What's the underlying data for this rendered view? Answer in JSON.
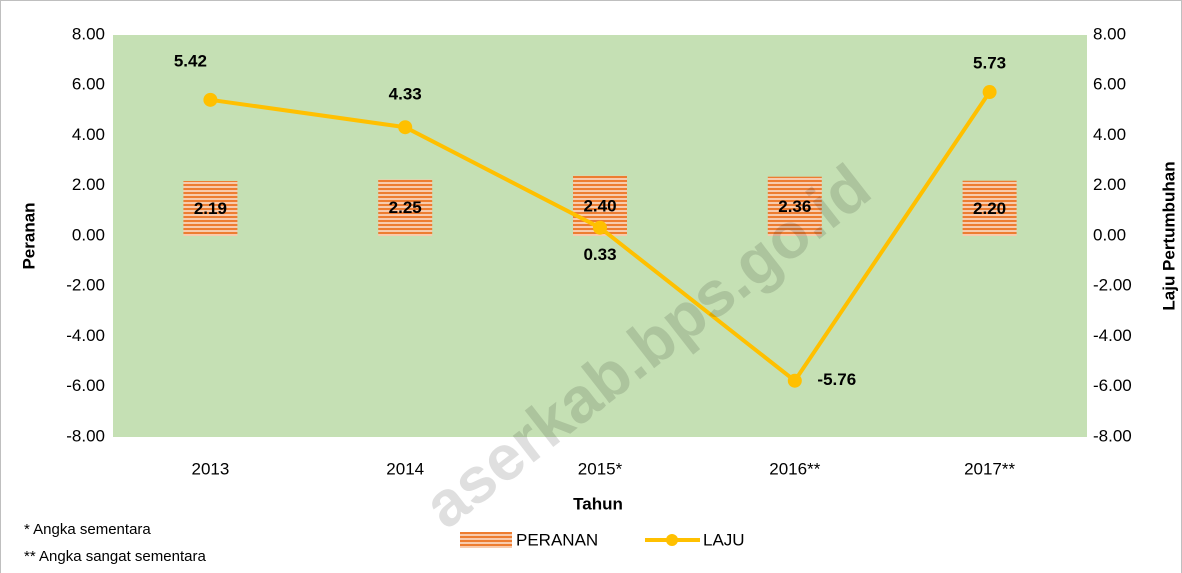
{
  "chart_data": {
    "type": "bar-line",
    "watermark": "aserkab.bps.go.id",
    "xlabel": "Tahun",
    "ylabel": "Peranan",
    "y2label": "Laju Pertumbuhan",
    "notes": [
      "* Angka sementara",
      "** Angka sangat sementara"
    ],
    "categories": [
      "2013",
      "2014",
      "2015*",
      "2016**",
      "2017**"
    ],
    "series": [
      {
        "name": "PERANAN",
        "type": "bar",
        "color": "#f4a582",
        "axis": "y",
        "values": [
          2.19,
          2.25,
          2.4,
          2.36,
          2.2
        ],
        "value_labels": [
          "2.19",
          "2.25",
          "2.40",
          "2.36",
          "2.20"
        ]
      },
      {
        "name": "LAJU",
        "type": "line",
        "color": "#ffc000",
        "axis": "y2",
        "values": [
          5.42,
          4.33,
          0.33,
          -5.76,
          5.73
        ],
        "value_labels": [
          "5.42",
          "4.33",
          "0.33",
          "-5.76",
          "5.73"
        ]
      }
    ],
    "ylim": [
      -8,
      8
    ],
    "yticks": [
      {
        "value": 8,
        "label": "8.00"
      },
      {
        "value": 6,
        "label": "6.00"
      },
      {
        "value": 4,
        "label": "4.00"
      },
      {
        "value": 2,
        "label": "2.00"
      },
      {
        "value": 0,
        "label": "0.00"
      },
      {
        "value": -2,
        "label": "-2.00"
      },
      {
        "value": -4,
        "label": "-4.00"
      },
      {
        "value": -6,
        "label": "-6.00"
      },
      {
        "value": -8,
        "label": "-8.00"
      }
    ],
    "y2lim": [
      -8,
      8
    ],
    "y2ticks": [
      {
        "value": 8,
        "label": "8.00"
      },
      {
        "value": 6,
        "label": "6.00"
      },
      {
        "value": 4,
        "label": "4.00"
      },
      {
        "value": 2,
        "label": "2.00"
      },
      {
        "value": 0,
        "label": "0.00"
      },
      {
        "value": -2,
        "label": "-2.00"
      },
      {
        "value": -4,
        "label": "-4.00"
      },
      {
        "value": -6,
        "label": "-6.00"
      },
      {
        "value": -8,
        "label": "-8.00"
      }
    ],
    "plot_background": "#c5e0b4",
    "legend": "bottom"
  }
}
